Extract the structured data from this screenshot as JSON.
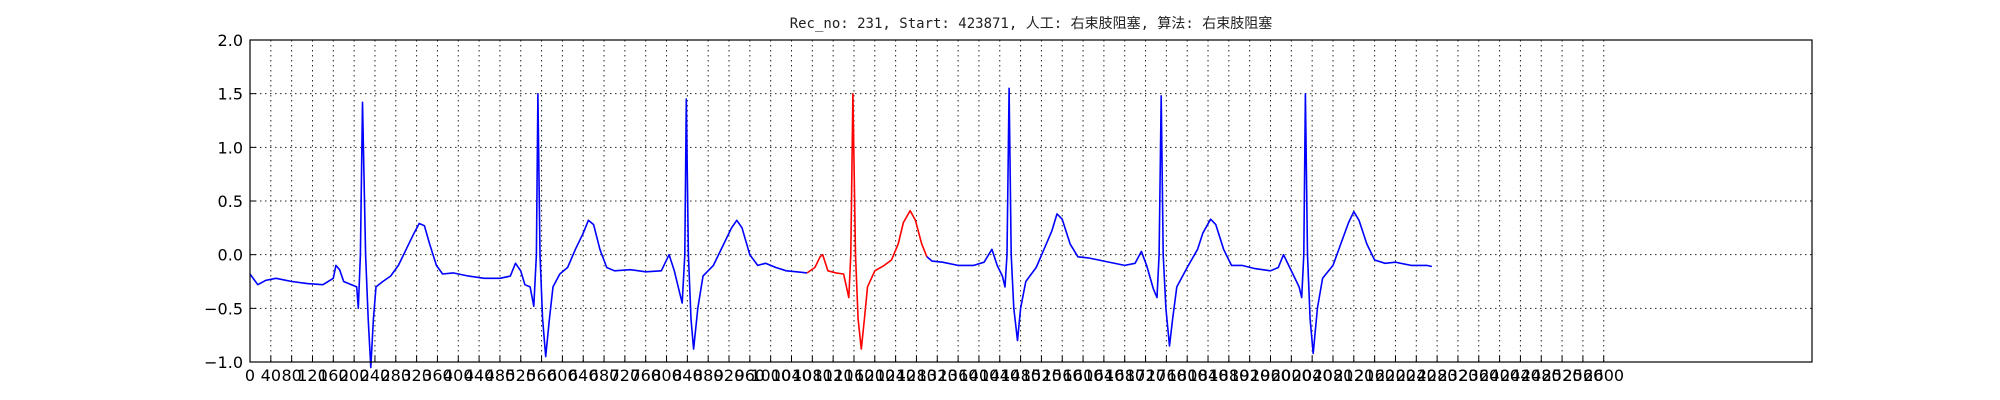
{
  "chart_data": {
    "type": "line",
    "title": "Rec_no: 231, Start: 423871, 人工: 右束肢阻塞, 算法: 右束肢阻塞",
    "xlabel": "",
    "ylabel": "",
    "xlim": [
      0,
      3000
    ],
    "ylim": [
      -1.0,
      2.0
    ],
    "grid": true,
    "y_ticks": [
      -1.0,
      -0.5,
      0.0,
      0.5,
      1.0,
      1.5,
      2.0
    ],
    "y_tick_labels": [
      "−1.0",
      "−0.5",
      "0.0",
      "0.5",
      "1.0",
      "1.5",
      "2.0"
    ],
    "x_ticks": [
      0,
      40,
      80,
      120,
      160,
      200,
      240,
      280,
      320,
      360,
      400,
      440,
      480,
      520,
      560,
      600,
      640,
      680,
      720,
      760,
      800,
      840,
      880,
      920,
      960,
      1000,
      1040,
      1080,
      1120,
      1160,
      1200,
      1240,
      1280,
      1320,
      1360,
      1400,
      1440,
      1480,
      1520,
      1560,
      1600,
      1640,
      1680,
      1720,
      1760,
      1800,
      1840,
      1880,
      1920,
      1960,
      2000,
      2040,
      2080,
      2120,
      2160,
      2200,
      2240,
      2280,
      2320,
      2360,
      2400,
      2440,
      2480,
      2520,
      2560,
      2600
    ],
    "x_tick_labels": [
      "0",
      "40",
      "80",
      "120",
      "160",
      "200",
      "240",
      "280",
      "320",
      "360",
      "400",
      "440",
      "480",
      "520",
      "560",
      "600",
      "640",
      "680",
      "720",
      "760",
      "800",
      "840",
      "880",
      "920",
      "960",
      "1000",
      "1040",
      "1080",
      "1120",
      "1160",
      "1200",
      "1240",
      "1280",
      "1320",
      "1360",
      "1400",
      "1440",
      "1480",
      "1520",
      "1560",
      "1600",
      "1640",
      "1680",
      "1720",
      "1760",
      "1800",
      "1840",
      "1880",
      "1920",
      "1960",
      "2000",
      "2040",
      "2080",
      "2120",
      "2160",
      "2200",
      "2240",
      "2280",
      "2320",
      "2360",
      "2400",
      "2440",
      "2480",
      "2520",
      "2560",
      "2600"
    ],
    "series": [
      {
        "color": "#0000ff",
        "points": [
          [
            0,
            -0.18
          ],
          [
            15,
            -0.28
          ],
          [
            30,
            -0.24
          ],
          [
            50,
            -0.22
          ],
          [
            80,
            -0.25
          ],
          [
            110,
            -0.27
          ],
          [
            140,
            -0.28
          ],
          [
            160,
            -0.22
          ],
          [
            165,
            -0.1
          ],
          [
            172,
            -0.14
          ],
          [
            180,
            -0.25
          ],
          [
            195,
            -0.28
          ],
          [
            205,
            -0.3
          ],
          [
            208,
            -0.5
          ],
          [
            212,
            0.0
          ],
          [
            216,
            1.42
          ],
          [
            222,
            0.0
          ],
          [
            227,
            -0.6
          ],
          [
            232,
            -1.05
          ],
          [
            237,
            -0.6
          ],
          [
            242,
            -0.3
          ],
          [
            255,
            -0.25
          ],
          [
            270,
            -0.2
          ],
          [
            285,
            -0.1
          ],
          [
            300,
            0.05
          ],
          [
            315,
            0.2
          ],
          [
            325,
            0.29
          ],
          [
            335,
            0.27
          ],
          [
            345,
            0.1
          ],
          [
            358,
            -0.1
          ],
          [
            370,
            -0.18
          ],
          [
            390,
            -0.17
          ],
          [
            420,
            -0.2
          ],
          [
            450,
            -0.22
          ],
          [
            480,
            -0.22
          ],
          [
            500,
            -0.2
          ],
          [
            510,
            -0.08
          ],
          [
            520,
            -0.15
          ],
          [
            528,
            -0.28
          ],
          [
            538,
            -0.3
          ],
          [
            545,
            -0.48
          ],
          [
            550,
            0.0
          ],
          [
            553,
            1.5
          ],
          [
            557,
            0.0
          ],
          [
            562,
            -0.6
          ],
          [
            568,
            -0.95
          ],
          [
            575,
            -0.6
          ],
          [
            582,
            -0.3
          ],
          [
            595,
            -0.18
          ],
          [
            610,
            -0.12
          ],
          [
            625,
            0.05
          ],
          [
            640,
            0.2
          ],
          [
            650,
            0.32
          ],
          [
            660,
            0.28
          ],
          [
            672,
            0.05
          ],
          [
            685,
            -0.12
          ],
          [
            700,
            -0.15
          ],
          [
            730,
            -0.14
          ],
          [
            760,
            -0.16
          ],
          [
            790,
            -0.15
          ],
          [
            805,
            0.0
          ],
          [
            815,
            -0.15
          ],
          [
            825,
            -0.35
          ],
          [
            830,
            -0.45
          ],
          [
            835,
            0.0
          ],
          [
            838,
            1.45
          ],
          [
            842,
            0.0
          ],
          [
            847,
            -0.6
          ],
          [
            852,
            -0.88
          ],
          [
            860,
            -0.5
          ],
          [
            870,
            -0.2
          ],
          [
            890,
            -0.1
          ],
          [
            910,
            0.1
          ],
          [
            925,
            0.25
          ],
          [
            935,
            0.32
          ],
          [
            945,
            0.25
          ],
          [
            960,
            0.0
          ],
          [
            975,
            -0.1
          ],
          [
            990,
            -0.08
          ],
          [
            1010,
            -0.12
          ],
          [
            1030,
            -0.15
          ],
          [
            1050,
            -0.16
          ],
          [
            1070,
            -0.17
          ]
        ]
      },
      {
        "color": "#ff0000",
        "points": [
          [
            1070,
            -0.17
          ],
          [
            1085,
            -0.12
          ],
          [
            1095,
            -0.02
          ],
          [
            1100,
            0.0
          ],
          [
            1110,
            -0.15
          ],
          [
            1125,
            -0.17
          ],
          [
            1140,
            -0.18
          ],
          [
            1150,
            -0.4
          ],
          [
            1154,
            0.0
          ],
          [
            1158,
            1.5
          ],
          [
            1163,
            0.0
          ],
          [
            1168,
            -0.6
          ],
          [
            1174,
            -0.88
          ],
          [
            1180,
            -0.6
          ],
          [
            1186,
            -0.3
          ],
          [
            1200,
            -0.15
          ],
          [
            1218,
            -0.1
          ],
          [
            1232,
            -0.05
          ],
          [
            1245,
            0.1
          ],
          [
            1255,
            0.3
          ],
          [
            1268,
            0.41
          ],
          [
            1278,
            0.32
          ],
          [
            1290,
            0.1
          ],
          [
            1300,
            -0.02
          ]
        ]
      },
      {
        "color": "#0000ff",
        "points": [
          [
            1300,
            -0.02
          ],
          [
            1310,
            -0.06
          ],
          [
            1330,
            -0.07
          ],
          [
            1360,
            -0.1
          ],
          [
            1390,
            -0.1
          ],
          [
            1410,
            -0.07
          ],
          [
            1425,
            0.05
          ],
          [
            1435,
            -0.1
          ],
          [
            1445,
            -0.2
          ],
          [
            1450,
            -0.3
          ],
          [
            1454,
            0.0
          ],
          [
            1458,
            1.55
          ],
          [
            1462,
            0.0
          ],
          [
            1467,
            -0.5
          ],
          [
            1474,
            -0.8
          ],
          [
            1480,
            -0.5
          ],
          [
            1490,
            -0.25
          ],
          [
            1510,
            -0.12
          ],
          [
            1525,
            0.05
          ],
          [
            1540,
            0.22
          ],
          [
            1550,
            0.38
          ],
          [
            1560,
            0.33
          ],
          [
            1575,
            0.1
          ],
          [
            1590,
            -0.02
          ],
          [
            1610,
            -0.03
          ],
          [
            1640,
            -0.06
          ],
          [
            1680,
            -0.1
          ],
          [
            1700,
            -0.08
          ],
          [
            1712,
            0.03
          ],
          [
            1722,
            -0.1
          ],
          [
            1735,
            -0.32
          ],
          [
            1742,
            -0.4
          ],
          [
            1746,
            0.0
          ],
          [
            1750,
            1.48
          ],
          [
            1754,
            0.0
          ],
          [
            1759,
            -0.5
          ],
          [
            1766,
            -0.85
          ],
          [
            1772,
            -0.6
          ],
          [
            1780,
            -0.3
          ],
          [
            1800,
            -0.12
          ],
          [
            1820,
            0.05
          ],
          [
            1830,
            0.2
          ],
          [
            1845,
            0.33
          ],
          [
            1855,
            0.28
          ],
          [
            1870,
            0.05
          ],
          [
            1885,
            -0.1
          ],
          [
            1905,
            -0.1
          ],
          [
            1930,
            -0.13
          ],
          [
            1960,
            -0.15
          ],
          [
            1975,
            -0.12
          ],
          [
            1985,
            0.0
          ],
          [
            1995,
            -0.1
          ],
          [
            2005,
            -0.2
          ],
          [
            2015,
            -0.3
          ],
          [
            2020,
            -0.4
          ],
          [
            2024,
            0.0
          ],
          [
            2027,
            1.5
          ],
          [
            2031,
            0.0
          ],
          [
            2036,
            -0.6
          ],
          [
            2042,
            -0.92
          ],
          [
            2050,
            -0.5
          ],
          [
            2060,
            -0.22
          ],
          [
            2080,
            -0.1
          ],
          [
            2095,
            0.1
          ],
          [
            2110,
            0.3
          ],
          [
            2120,
            0.4
          ],
          [
            2130,
            0.32
          ],
          [
            2145,
            0.1
          ],
          [
            2160,
            -0.05
          ],
          [
            2180,
            -0.08
          ],
          [
            2200,
            -0.07
          ],
          [
            2230,
            -0.1
          ],
          [
            2260,
            -0.1
          ],
          [
            2270,
            -0.11
          ]
        ]
      }
    ]
  }
}
